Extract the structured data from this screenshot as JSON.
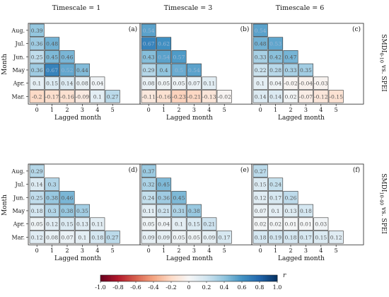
{
  "chart_data": {
    "type": "heatmap",
    "column_titles": [
      "Timescale = 1",
      "Timescale = 3",
      "Timescale = 6"
    ],
    "row_labels": [
      "SMDI0-10 vs. SPEI",
      "SMDI10-40 vs. SPEI"
    ],
    "xlabel": "Lagged month",
    "ylabel": "Month",
    "x_ticks": [
      "0",
      "1",
      "2",
      "3",
      "4",
      "5"
    ],
    "y_ticks": [
      "Aug.",
      "Jul.",
      "Jun.",
      "May",
      "Apr.",
      "Mar."
    ],
    "colorbar": {
      "label": "r",
      "range": [
        -1.0,
        1.0
      ],
      "ticks": [
        "-1.0",
        "-0.8",
        "-0.6",
        "-0.4",
        "-0.2",
        "0",
        "0.2",
        "0.4",
        "0.6",
        "0.8",
        "1.0"
      ]
    },
    "panels": [
      {
        "label": "(a)",
        "values": [
          [
            0.39
          ],
          [
            0.36,
            0.48
          ],
          [
            0.25,
            0.45,
            0.46
          ],
          [
            0.36,
            0.67,
            0.52,
            0.44
          ],
          [
            0.1,
            0.15,
            0.14,
            0.08,
            0.04
          ],
          [
            -0.2,
            -0.17,
            -0.16,
            -0.09,
            0.1,
            0.27
          ]
        ]
      },
      {
        "label": "(b)",
        "values": [
          [
            0.54
          ],
          [
            0.67,
            0.62
          ],
          [
            0.43,
            0.54,
            0.57
          ],
          [
            0.29,
            0.4,
            0.5,
            0.54
          ],
          [
            0.08,
            0.05,
            0.05,
            0.07,
            0.11
          ],
          [
            -0.11,
            -0.16,
            -0.23,
            -0.21,
            -0.13,
            -0.02
          ]
        ]
      },
      {
        "label": "(c)",
        "values": [
          [
            0.54
          ],
          [
            0.48,
            0.53
          ],
          [
            0.33,
            0.42,
            0.47
          ],
          [
            0.22,
            0.28,
            0.33,
            0.35
          ],
          [
            0.1,
            0.04,
            -0.02,
            -0.04,
            -0.03
          ],
          [
            0.14,
            0.14,
            0.02,
            -0.07,
            -0.12,
            -0.15
          ]
        ]
      },
      {
        "label": "(d)",
        "values": [
          [
            0.29
          ],
          [
            0.14,
            0.3
          ],
          [
            0.25,
            0.38,
            0.46
          ],
          [
            0.18,
            0.3,
            0.38,
            0.35
          ],
          [
            0.05,
            0.12,
            0.15,
            0.13,
            0.11
          ],
          [
            0.12,
            0.08,
            0.07,
            0.1,
            0.18,
            0.27
          ]
        ]
      },
      {
        "label": "(e)",
        "values": [
          [
            0.37
          ],
          [
            0.32,
            0.45
          ],
          [
            0.24,
            0.36,
            0.45
          ],
          [
            0.11,
            0.21,
            0.31,
            0.38
          ],
          [
            0.05,
            0.04,
            0.1,
            0.15,
            0.21
          ],
          [
            0.09,
            0.09,
            0.05,
            0.05,
            0.09,
            0.17
          ]
        ]
      },
      {
        "label": "(f)",
        "values": [
          [
            0.27
          ],
          [
            0.15,
            0.24
          ],
          [
            0.12,
            0.17,
            0.26
          ],
          [
            0.07,
            0.1,
            0.13,
            0.18
          ],
          [
            0.02,
            0.02,
            0.01,
            0.01,
            0.03
          ],
          [
            0.18,
            0.19,
            0.18,
            0.17,
            0.15,
            0.12
          ]
        ]
      }
    ]
  }
}
